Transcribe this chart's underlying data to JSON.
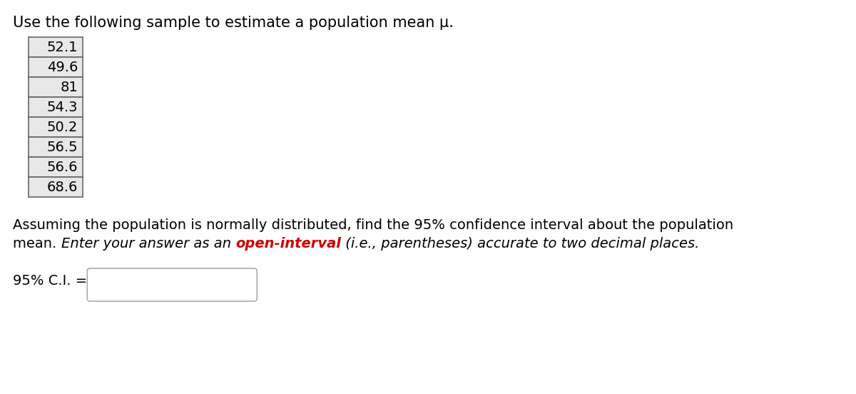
{
  "title": "Use the following sample to estimate a population mean μ.",
  "sample_values": [
    "52.1",
    "49.6",
    "81",
    "54.3",
    "50.2",
    "56.5",
    "56.6",
    "68.6"
  ],
  "para_line1": "Assuming the population is normally distributed, find the 95% confidence interval about the population",
  "para_seg1": "mean. ",
  "para_seg2": "Enter your answer as an ",
  "para_seg3": "open-interval",
  "para_seg4": " (i.e., parentheses) accurate to two decimal places.",
  "ci_label_part1": "95% C.I. =",
  "bg_color": "#ffffff",
  "text_color": "#000000",
  "red_color": "#cc0000",
  "table_border_color": "#666666",
  "table_bg_color": "#e8e8e8",
  "input_box_border_color": "#aaaaaa",
  "input_box_bg_color": "#ffffff",
  "title_fontsize": 15,
  "body_fontsize": 14,
  "table_fontsize": 14
}
